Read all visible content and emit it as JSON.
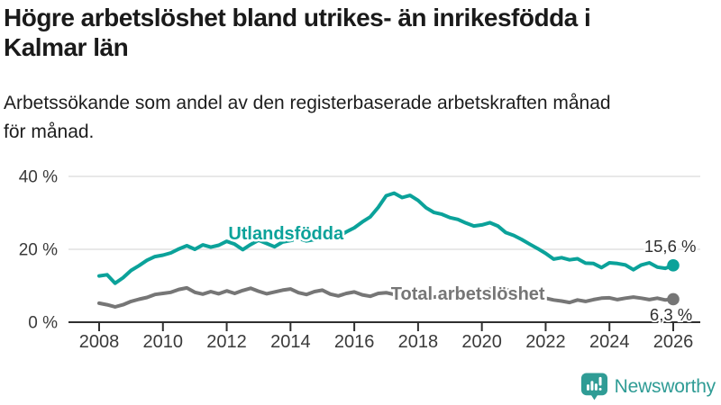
{
  "header": {
    "title": "Högre arbetslöshet bland utrikes- än inrikesfödda i\nKalmar län",
    "subtitle": "Arbetssökande som andel av den registerbaserade arbetskraften månad\nför månad."
  },
  "branding": {
    "name": "Newsworthy",
    "icon": "newsworthy-speech-bubble-bar-chart-icon",
    "color": "#2f9c95"
  },
  "chart_data": {
    "type": "line",
    "title": "Högre arbetslöshet bland utrikes- än inrikesfödda i Kalmar län",
    "subtitle": "Arbetssökande som andel av den registerbaserade arbetskraften månad för månad.",
    "legend_position": "inline-labels",
    "grid": "horizontal",
    "grid_color": "#dadada",
    "axis_color": "#2f2f2f",
    "tick_label_color": "#3a3a3a",
    "value_label_color": "#2f2f2f",
    "x_axis": {
      "unit": "year",
      "ticks": [
        2008,
        2010,
        2012,
        2014,
        2016,
        2018,
        2020,
        2022,
        2024,
        2026
      ]
    },
    "y_axis": {
      "unit": "%",
      "tick_values": [
        0,
        20,
        40
      ],
      "tick_labels": [
        "0 %",
        "20 %",
        "40 %"
      ],
      "range": [
        0,
        44
      ]
    },
    "x_start": 2008,
    "x_step": 0.25,
    "x_end": 2026,
    "series": [
      {
        "id": "utlandsfodda",
        "name": "Utlandsfödda",
        "color": "#0ba29a",
        "end_value": 15.6,
        "end_label": "15,6 %",
        "line_label_anchor": {
          "year": 2012.05,
          "pct": 22.7
        },
        "end_label_anchor": {
          "year": 2026.72,
          "pct": 19.3
        },
        "values": [
          12.7,
          13.0,
          10.7,
          12.2,
          14.2,
          15.5,
          17.0,
          18.0,
          18.4,
          19.0,
          20.1,
          21.0,
          20.0,
          21.2,
          20.6,
          21.1,
          22.2,
          21.4,
          19.9,
          21.3,
          22.5,
          21.6,
          20.7,
          22.0,
          22.4,
          23.0,
          22.3,
          22.7,
          23.2,
          23.8,
          23.4,
          24.8,
          25.9,
          27.5,
          28.9,
          31.5,
          34.7,
          35.4,
          34.2,
          34.8,
          33.4,
          31.4,
          30.1,
          29.6,
          28.7,
          28.2,
          27.2,
          26.4,
          26.7,
          27.3,
          26.4,
          24.6,
          23.8,
          22.7,
          21.4,
          20.2,
          18.9,
          17.3,
          17.7,
          17.1,
          17.4,
          16.2,
          16.1,
          15.0,
          16.3,
          16.1,
          15.7,
          14.4,
          15.7,
          16.3,
          15.1,
          14.8,
          15.6
        ]
      },
      {
        "id": "total-arbetsloshet",
        "name": "Total arbetslöshet",
        "color": "#767676",
        "end_value": 6.3,
        "end_label": "6,3 %",
        "line_label_anchor": {
          "year": 2017.15,
          "pct": 6.2
        },
        "end_label_anchor": {
          "year": 2026.6,
          "pct": 0.55
        },
        "values": [
          5.2,
          4.8,
          4.2,
          4.8,
          5.7,
          6.3,
          6.8,
          7.6,
          7.9,
          8.2,
          9.0,
          9.4,
          8.2,
          7.7,
          8.4,
          7.8,
          8.6,
          7.9,
          8.7,
          9.3,
          8.5,
          7.8,
          8.3,
          8.8,
          9.1,
          8.1,
          7.6,
          8.4,
          8.8,
          7.7,
          7.2,
          7.9,
          8.3,
          7.5,
          7.1,
          7.9,
          8.1,
          7.6,
          7.2,
          7.7,
          7.9,
          7.2,
          6.9,
          7.2,
          7.4,
          6.9,
          6.7,
          7.1,
          7.6,
          9.0,
          9.3,
          8.9,
          8.6,
          8.0,
          7.6,
          7.1,
          6.6,
          6.1,
          5.8,
          5.4,
          6.1,
          5.7,
          6.2,
          6.6,
          6.7,
          6.2,
          6.6,
          6.9,
          6.6,
          6.2,
          6.6,
          6.1,
          6.3
        ]
      }
    ]
  }
}
